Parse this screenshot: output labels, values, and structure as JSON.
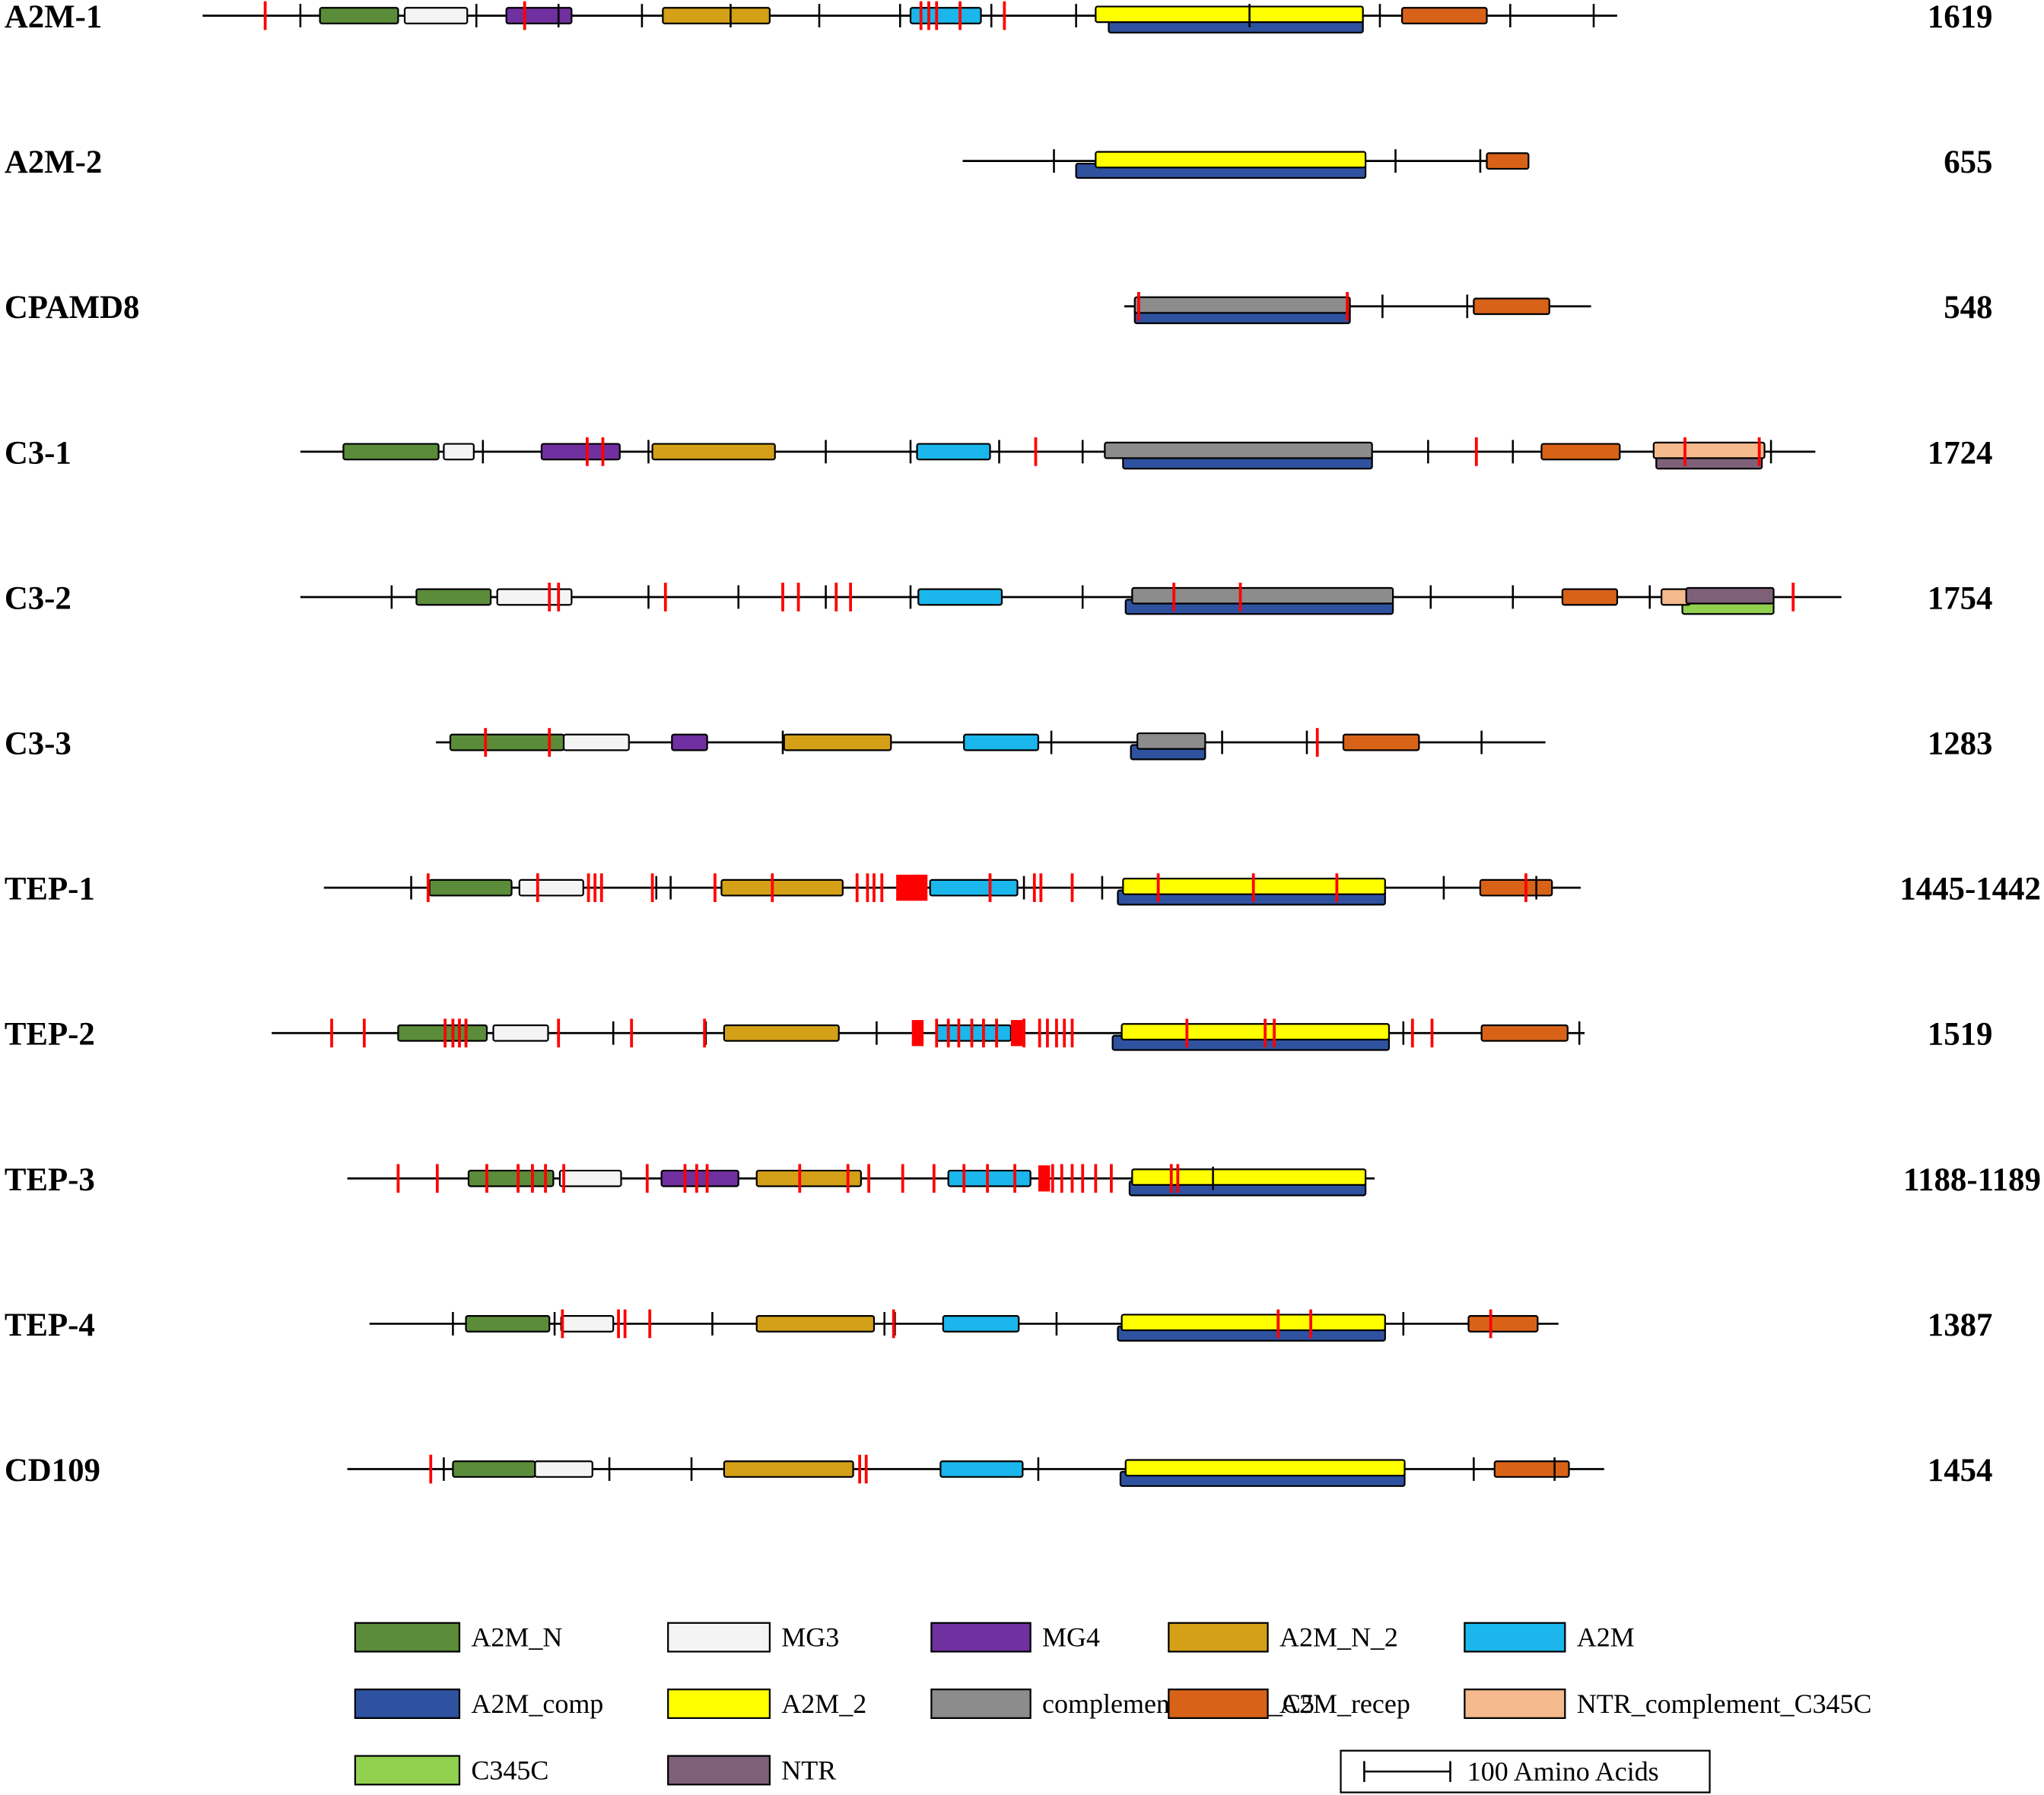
{
  "domains": {
    "A2M_N": "#5b8c3a",
    "MG3": "#f4f4f4",
    "MG4": "#7030a0",
    "A2M_N_2": "#d4a017",
    "A2M": "#1ab6ec",
    "A2M_comp": "#2f52a0",
    "A2M_2": "#ffff00",
    "complement_C3_C4_C5": "#8c8c8c",
    "A2M_recep": "#d86318",
    "NTR_complement_C345C": "#f4b98c",
    "C345C": "#92d050",
    "NTR": "#7e6179"
  },
  "proteins": [
    {
      "name": "A2M-1",
      "length": "1619",
      "line": [
        155,
        1240
      ],
      "domains": [
        {
          "type": "A2M_N",
          "start": 245,
          "end": 305
        },
        {
          "type": "MG3",
          "start": 310,
          "end": 358
        },
        {
          "type": "MG4",
          "start": 388,
          "end": 438
        },
        {
          "type": "A2M_N_2",
          "start": 508,
          "end": 590
        },
        {
          "type": "A2M",
          "start": 698,
          "end": 752
        },
        {
          "type": "A2M_2",
          "start": 840,
          "end": 1045,
          "lane": "top"
        },
        {
          "type": "A2M_comp",
          "start": 850,
          "end": 1045,
          "lane": "bottom"
        },
        {
          "type": "A2M_recep",
          "start": 1075,
          "end": 1140
        }
      ],
      "ticks": [
        230,
        365,
        428,
        492,
        560,
        628,
        690,
        760,
        825,
        958,
        1058,
        1158,
        1222
      ],
      "red": [
        203,
        402,
        706,
        712,
        718,
        736,
        770
      ]
    },
    {
      "name": "A2M-2",
      "length": "655",
      "line": [
        738,
        1140
      ],
      "domains": [
        {
          "type": "A2M_2",
          "start": 840,
          "end": 1047,
          "lane": "top"
        },
        {
          "type": "A2M_comp",
          "start": 825,
          "end": 1047,
          "lane": "bottom"
        },
        {
          "type": "A2M_recep",
          "start": 1140,
          "end": 1172
        }
      ],
      "ticks": [
        808,
        1070,
        1135
      ],
      "red": []
    },
    {
      "name": "CPAMD8",
      "length": "548",
      "line": [
        862,
        1220
      ],
      "domains": [
        {
          "type": "complement_C3_C4_C5",
          "start": 870,
          "end": 1035,
          "lane": "top"
        },
        {
          "type": "A2M_comp",
          "start": 870,
          "end": 1035,
          "lane": "bottom"
        },
        {
          "type": "A2M_recep",
          "start": 1130,
          "end": 1188
        }
      ],
      "ticks": [
        1060,
        1125
      ],
      "red": [
        873,
        1033
      ]
    },
    {
      "name": "C3-1",
      "length": "1724",
      "line": [
        230,
        1392
      ],
      "domains": [
        {
          "type": "A2M_N",
          "start": 263,
          "end": 336
        },
        {
          "type": "MG3",
          "start": 340,
          "end": 363
        },
        {
          "type": "MG4",
          "start": 415,
          "end": 475
        },
        {
          "type": "A2M_N_2",
          "start": 500,
          "end": 594
        },
        {
          "type": "A2M",
          "start": 703,
          "end": 759
        },
        {
          "type": "complement_C3_C4_C5",
          "start": 847,
          "end": 1052,
          "lane": "top"
        },
        {
          "type": "A2M_comp",
          "start": 861,
          "end": 1052,
          "lane": "bottom"
        },
        {
          "type": "A2M_recep",
          "start": 1182,
          "end": 1242
        },
        {
          "type": "NTR_complement_C345C",
          "start": 1268,
          "end": 1353,
          "lane": "top"
        },
        {
          "type": "NTR",
          "start": 1270,
          "end": 1351,
          "lane": "bottom"
        }
      ],
      "ticks": [
        370,
        497,
        633,
        698,
        766,
        830,
        1095,
        1160,
        1358
      ],
      "red": [
        450,
        462,
        794,
        1132,
        1292,
        1349
      ]
    },
    {
      "name": "C3-2",
      "length": "1754",
      "line": [
        230,
        1412
      ],
      "domains": [
        {
          "type": "A2M_N",
          "start": 319,
          "end": 376
        },
        {
          "type": "MG3",
          "start": 381,
          "end": 438
        },
        {
          "type": "A2M",
          "start": 704,
          "end": 768
        },
        {
          "type": "complement_C3_C4_C5",
          "start": 868,
          "end": 1068,
          "lane": "top"
        },
        {
          "type": "A2M_comp",
          "start": 863,
          "end": 1068,
          "lane": "bottom"
        },
        {
          "type": "A2M_recep",
          "start": 1198,
          "end": 1240
        },
        {
          "type": "NTR_complement_C345C",
          "start": 1274,
          "end": 1296
        },
        {
          "type": "NTR",
          "start": 1293,
          "end": 1360,
          "lane": "top"
        },
        {
          "type": "C345C",
          "start": 1290,
          "end": 1360,
          "lane": "bottom"
        }
      ],
      "ticks": [
        300,
        497,
        566,
        633,
        698,
        830,
        1097,
        1160,
        1265
      ],
      "red": [
        421,
        428,
        510,
        600,
        612,
        641,
        652,
        900,
        951,
        1375
      ]
    },
    {
      "name": "C3-3",
      "length": "1283",
      "line": [
        334,
        1185
      ],
      "domains": [
        {
          "type": "A2M_N",
          "start": 345,
          "end": 432
        },
        {
          "type": "MG3",
          "start": 432,
          "end": 482
        },
        {
          "type": "MG4",
          "start": 515,
          "end": 542
        },
        {
          "type": "A2M_N_2",
          "start": 601,
          "end": 683
        },
        {
          "type": "A2M",
          "start": 739,
          "end": 796
        },
        {
          "type": "complement_C3_C4_C5",
          "start": 872,
          "end": 924,
          "lane": "top"
        },
        {
          "type": "A2M_comp",
          "start": 867,
          "end": 924,
          "lane": "bottom"
        },
        {
          "type": "A2M_recep",
          "start": 1030,
          "end": 1088
        }
      ],
      "ticks": [
        600,
        806,
        937,
        1002,
        1136
      ],
      "red": [
        372,
        421,
        1010
      ]
    },
    {
      "name": "TEP-1",
      "length": "1445-1442",
      "line": [
        248,
        1212
      ],
      "domains": [
        {
          "type": "A2M_N",
          "start": 329,
          "end": 392
        },
        {
          "type": "MG3",
          "start": 398,
          "end": 447
        },
        {
          "type": "A2M_N_2",
          "start": 553,
          "end": 646
        },
        {
          "type": "A2M",
          "start": 713,
          "end": 780
        },
        {
          "type": "A2M_2",
          "start": 861,
          "end": 1062,
          "lane": "top"
        },
        {
          "type": "A2M_comp",
          "start": 857,
          "end": 1062,
          "lane": "bottom"
        },
        {
          "type": "A2M_recep",
          "start": 1135,
          "end": 1190
        }
      ],
      "ticks": [
        315,
        503,
        514,
        785,
        845,
        1107,
        1178
      ],
      "red": [
        328,
        412,
        451,
        456,
        461,
        500,
        548,
        592,
        657,
        665,
        670,
        676,
        759,
        793,
        798,
        822,
        888,
        961,
        1025,
        1170
      ],
      "red_blocks": [
        [
          687,
          711
        ]
      ]
    },
    {
      "name": "TEP-2",
      "length": "1519",
      "line": [
        208,
        1215
      ],
      "domains": [
        {
          "type": "A2M_N",
          "start": 305,
          "end": 373
        },
        {
          "type": "MG3",
          "start": 378,
          "end": 420
        },
        {
          "type": "A2M_N_2",
          "start": 555,
          "end": 643
        },
        {
          "type": "A2M",
          "start": 718,
          "end": 775
        },
        {
          "type": "A2M_2",
          "start": 860,
          "end": 1065,
          "lane": "top"
        },
        {
          "type": "A2M_comp",
          "start": 853,
          "end": 1065,
          "lane": "bottom"
        },
        {
          "type": "A2M_recep",
          "start": 1136,
          "end": 1202
        }
      ],
      "ticks": [
        470,
        541,
        672,
        1076,
        1211
      ],
      "red": [
        254,
        279,
        341,
        347,
        352,
        357,
        428,
        484,
        540,
        718,
        727,
        735,
        745,
        754,
        764,
        785,
        797,
        803,
        810,
        816,
        822,
        910,
        970,
        977,
        1083,
        1098
      ],
      "red_blocks": [
        [
          699,
          708
        ],
        [
          775,
          784
        ]
      ]
    },
    {
      "name": "TEP-3",
      "length": "1188-1189",
      "line": [
        266,
        1054
      ],
      "domains": [
        {
          "type": "A2M_N",
          "start": 359,
          "end": 424
        },
        {
          "type": "MG3",
          "start": 429,
          "end": 476
        },
        {
          "type": "MG4",
          "start": 507,
          "end": 566
        },
        {
          "type": "A2M_N_2",
          "start": 580,
          "end": 660
        },
        {
          "type": "A2M",
          "start": 727,
          "end": 790
        },
        {
          "type": "A2M_2",
          "start": 868,
          "end": 1047,
          "lane": "top"
        },
        {
          "type": "A2M_comp",
          "start": 866,
          "end": 1047,
          "lane": "bottom"
        }
      ],
      "ticks": [
        930
      ],
      "red": [
        305,
        335,
        373,
        397,
        408,
        418,
        432,
        496,
        525,
        534,
        542,
        613,
        650,
        666,
        692,
        716,
        739,
        757,
        778,
        807,
        814,
        822,
        830,
        840,
        852,
        898,
        903
      ],
      "red_blocks": [
        [
          796,
          805
        ]
      ]
    },
    {
      "name": "TEP-4",
      "length": "1387",
      "line": [
        283,
        1195
      ],
      "domains": [
        {
          "type": "A2M_N",
          "start": 357,
          "end": 421
        },
        {
          "type": "MG3",
          "start": 430,
          "end": 470
        },
        {
          "type": "A2M_N_2",
          "start": 580,
          "end": 670
        },
        {
          "type": "A2M",
          "start": 723,
          "end": 781
        },
        {
          "type": "A2M_2",
          "start": 860,
          "end": 1062,
          "lane": "top"
        },
        {
          "type": "A2M_comp",
          "start": 857,
          "end": 1062,
          "lane": "bottom"
        }
      ],
      "ticks": [
        347,
        425,
        546,
        678,
        686,
        810,
        1076
      ],
      "red": [
        431,
        474,
        479,
        498,
        685,
        980,
        1005,
        1143
      ],
      "domains_extra": [
        {
          "type": "A2M_recep",
          "start": 1126,
          "end": 1179
        }
      ]
    },
    {
      "name": "CD109",
      "length": "1454",
      "line": [
        266,
        1230
      ],
      "domains": [
        {
          "type": "A2M_N",
          "start": 347,
          "end": 410
        },
        {
          "type": "MG3",
          "start": 410,
          "end": 454
        },
        {
          "type": "A2M_N_2",
          "start": 555,
          "end": 654
        },
        {
          "type": "A2M",
          "start": 721,
          "end": 784
        },
        {
          "type": "A2M_2",
          "start": 863,
          "end": 1077,
          "lane": "top"
        },
        {
          "type": "A2M_comp",
          "start": 859,
          "end": 1077,
          "lane": "bottom"
        },
        {
          "type": "A2M_recep",
          "start": 1146,
          "end": 1203
        }
      ],
      "ticks": [
        340,
        467,
        530,
        796,
        1130,
        1192
      ],
      "red": [
        330,
        659,
        664
      ]
    }
  ],
  "legend": [
    {
      "type": "A2M_N",
      "label": "A2M_N"
    },
    {
      "type": "MG3",
      "label": "MG3"
    },
    {
      "type": "MG4",
      "label": "MG4"
    },
    {
      "type": "A2M_N_2",
      "label": "A2M_N_2"
    },
    {
      "type": "A2M",
      "label": "A2M"
    },
    {
      "type": "A2M_comp",
      "label": "A2M_comp"
    },
    {
      "type": "A2M_2",
      "label": "A2M_2"
    },
    {
      "type": "complement_C3_C4_C5",
      "label": "complement_C3_C4_C5"
    },
    {
      "type": "A2M_recep",
      "label": "A2M_recep"
    },
    {
      "type": "NTR_complement_C345C",
      "label": "NTR_complement_C345C"
    },
    {
      "type": "C345C",
      "label": "C345C"
    },
    {
      "type": "NTR",
      "label": "NTR"
    }
  ],
  "scale_label": "100 Amino Acids",
  "colors": {
    "backbone": "#000000",
    "red_mark": "#ff0000",
    "outline": "#000000"
  }
}
